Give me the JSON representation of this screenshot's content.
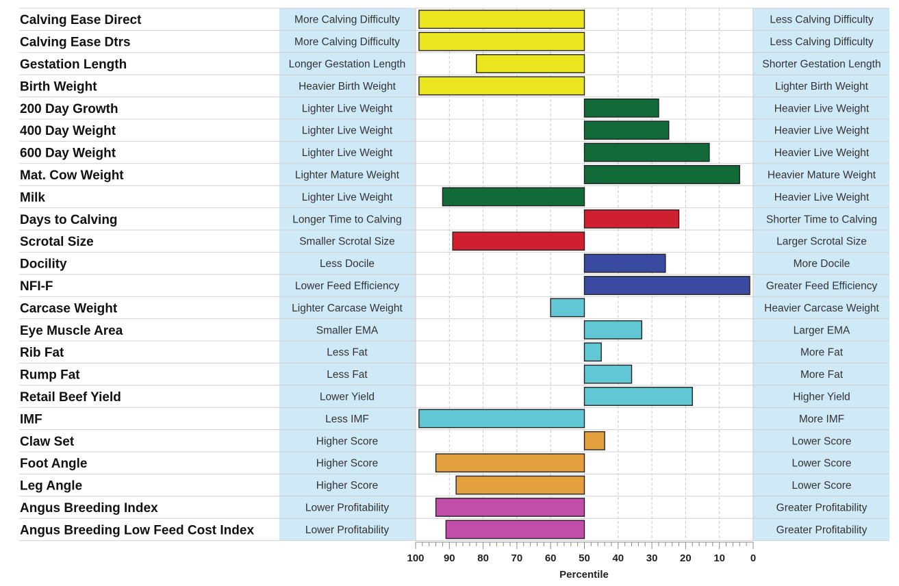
{
  "chart_data": {
    "type": "bar",
    "xlabel": "Percentile",
    "xlim": [
      100,
      0
    ],
    "center": 50,
    "x_ticks": [
      100,
      90,
      80,
      70,
      60,
      50,
      40,
      30,
      20,
      10,
      0
    ],
    "grid": true,
    "colors": {
      "calving": "#ebe51f",
      "growth": "#126a38",
      "fertility": "#cf2030",
      "temperament": "#3a4aa0",
      "carcase": "#62c7d5",
      "structure": "#e4a03e",
      "index": "#c14ea8",
      "label_box": "#cfe9f6"
    },
    "traits": [
      {
        "name": "Calving Ease Direct",
        "left": "More Calving Difficulty",
        "right": "Less Calving Difficulty",
        "value": 99,
        "group": "calving"
      },
      {
        "name": "Calving Ease Dtrs",
        "left": "More Calving Difficulty",
        "right": "Less Calving Difficulty",
        "value": 99,
        "group": "calving"
      },
      {
        "name": "Gestation Length",
        "left": "Longer Gestation Length",
        "right": "Shorter Gestation Length",
        "value": 82,
        "group": "calving"
      },
      {
        "name": "Birth Weight",
        "left": "Heavier Birth Weight",
        "right": "Lighter Birth Weight",
        "value": 99,
        "group": "calving"
      },
      {
        "name": "200 Day Growth",
        "left": "Lighter Live Weight",
        "right": "Heavier Live Weight",
        "value": 28,
        "group": "growth"
      },
      {
        "name": "400 Day Weight",
        "left": "Lighter Live Weight",
        "right": "Heavier Live Weight",
        "value": 25,
        "group": "growth"
      },
      {
        "name": "600 Day Weight",
        "left": "Lighter Live Weight",
        "right": "Heavier Live Weight",
        "value": 13,
        "group": "growth"
      },
      {
        "name": "Mat. Cow Weight",
        "left": "Lighter Mature Weight",
        "right": "Heavier Mature Weight",
        "value": 4,
        "group": "growth"
      },
      {
        "name": "Milk",
        "left": "Lighter Live Weight",
        "right": "Heavier Live Weight",
        "value": 92,
        "group": "growth"
      },
      {
        "name": "Days to Calving",
        "left": "Longer Time to Calving",
        "right": "Shorter Time to Calving",
        "value": 22,
        "group": "fertility"
      },
      {
        "name": "Scrotal Size",
        "left": "Smaller Scrotal Size",
        "right": "Larger Scrotal Size",
        "value": 89,
        "group": "fertility"
      },
      {
        "name": "Docility",
        "left": "Less Docile",
        "right": "More Docile",
        "value": 26,
        "group": "temperament"
      },
      {
        "name": "NFI-F",
        "left": "Lower Feed Efficiency",
        "right": "Greater Feed Efficiency",
        "value": 1,
        "group": "temperament"
      },
      {
        "name": "Carcase Weight",
        "left": "Lighter Carcase Weight",
        "right": "Heavier Carcase Weight",
        "value": 60,
        "group": "carcase"
      },
      {
        "name": "Eye Muscle Area",
        "left": "Smaller EMA",
        "right": "Larger EMA",
        "value": 33,
        "group": "carcase"
      },
      {
        "name": "Rib Fat",
        "left": "Less Fat",
        "right": "More Fat",
        "value": 45,
        "group": "carcase"
      },
      {
        "name": "Rump Fat",
        "left": "Less Fat",
        "right": "More Fat",
        "value": 36,
        "group": "carcase"
      },
      {
        "name": "Retail Beef Yield",
        "left": "Lower Yield",
        "right": "Higher Yield",
        "value": 18,
        "group": "carcase"
      },
      {
        "name": "IMF",
        "left": "Less IMF",
        "right": "More IMF",
        "value": 99,
        "group": "carcase"
      },
      {
        "name": "Claw Set",
        "left": "Higher Score",
        "right": "Lower Score",
        "value": 44,
        "group": "structure"
      },
      {
        "name": "Foot Angle",
        "left": "Higher Score",
        "right": "Lower Score",
        "value": 94,
        "group": "structure"
      },
      {
        "name": "Leg Angle",
        "left": "Higher Score",
        "right": "Lower Score",
        "value": 88,
        "group": "structure"
      },
      {
        "name": "Angus Breeding Index",
        "left": "Lower Profitability",
        "right": "Greater Profitability",
        "value": 94,
        "group": "index"
      },
      {
        "name": "Angus Breeding Low Feed Cost Index",
        "left": "Lower Profitability",
        "right": "Greater Profitability",
        "value": 91,
        "group": "index"
      }
    ]
  }
}
